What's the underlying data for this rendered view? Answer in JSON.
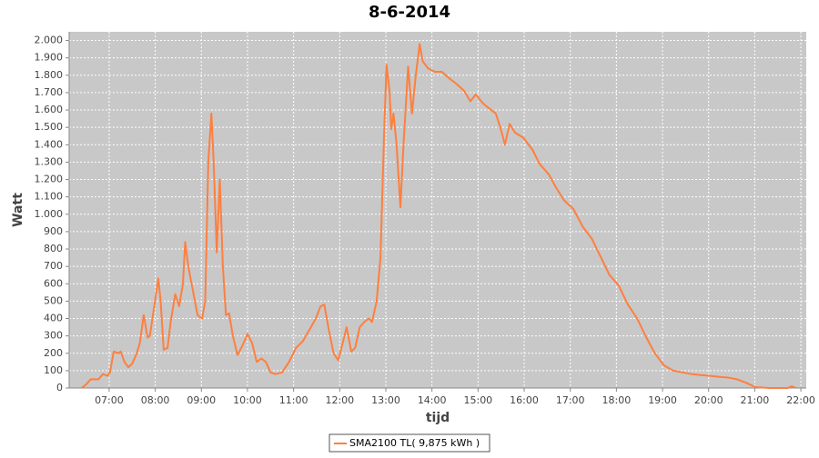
{
  "chart_data": {
    "type": "line",
    "title": "8-6-2014",
    "y_label": "Watt",
    "x_label": "tijd",
    "xlim": [
      "06:08",
      "22:07"
    ],
    "ylim": [
      0,
      2050
    ],
    "xticks": [
      "07:00",
      "08:00",
      "09:00",
      "10:00",
      "11:00",
      "12:00",
      "13:00",
      "14:00",
      "15:00",
      "16:00",
      "17:00",
      "18:00",
      "19:00",
      "20:00",
      "21:00",
      "22:00"
    ],
    "yticks": [
      0,
      100,
      200,
      300,
      400,
      500,
      600,
      700,
      800,
      900,
      {
        "value": 1000,
        "label": "1.000"
      },
      {
        "value": 1100,
        "label": "1.100"
      },
      {
        "value": 1200,
        "label": "1.200"
      },
      {
        "value": 1300,
        "label": "1.300"
      },
      {
        "value": 1400,
        "label": "1.400"
      },
      {
        "value": 1500,
        "label": "1.500"
      },
      {
        "value": 1600,
        "label": "1.600"
      },
      {
        "value": 1700,
        "label": "1.700"
      },
      {
        "value": 1800,
        "label": "1.800"
      },
      {
        "value": 1900,
        "label": "1.900"
      },
      {
        "value": 2000,
        "label": "2.000"
      }
    ],
    "grid": true,
    "legend": "bottom",
    "x": [
      "06:24",
      "06:30",
      "06:36",
      "06:46",
      "06:52",
      "06:58",
      "07:01",
      "07:06",
      "07:12",
      "07:15",
      "07:20",
      "07:25",
      "07:30",
      "07:36",
      "07:40",
      "07:45",
      "07:50",
      "07:53",
      "07:58",
      "08:04",
      "08:07",
      "08:11",
      "08:16",
      "08:20",
      "08:26",
      "08:31",
      "08:36",
      "08:39",
      "08:43",
      "08:49",
      "08:55",
      "09:01",
      "09:05",
      "09:09",
      "09:13",
      "09:16",
      "09:20",
      "09:24",
      "09:28",
      "09:32",
      "09:36",
      "09:41",
      "09:47",
      "09:53",
      "10:00",
      "10:06",
      "10:12",
      "10:18",
      "10:24",
      "10:30",
      "10:36",
      "10:45",
      "10:54",
      "11:03",
      "11:12",
      "11:20",
      "11:29",
      "11:35",
      "11:40",
      "11:46",
      "11:52",
      "11:58",
      "12:04",
      "12:09",
      "12:15",
      "12:20",
      "12:26",
      "12:32",
      "12:38",
      "12:42",
      "12:48",
      "12:53",
      "12:58",
      "13:01",
      "13:05",
      "13:07",
      "13:10",
      "13:14",
      "13:19",
      "13:23",
      "13:29",
      "13:34",
      "13:39",
      "13:44",
      "13:48",
      "13:55",
      "14:04",
      "14:13",
      "14:23",
      "14:32",
      "14:42",
      "14:50",
      "14:57",
      "15:06",
      "15:14",
      "15:23",
      "15:29",
      "15:35",
      "15:41",
      "15:48",
      "15:59",
      "16:11",
      "16:20",
      "16:32",
      "16:42",
      "16:52",
      "17:04",
      "17:16",
      "17:28",
      "17:39",
      "17:51",
      "18:03",
      "18:15",
      "18:27",
      "18:39",
      "18:50",
      "19:02",
      "19:14",
      "19:26",
      "19:38",
      "19:50",
      "20:02",
      "20:13",
      "20:25",
      "20:37",
      "20:49",
      "21:01",
      "21:19",
      "21:43",
      "21:48",
      "21:54"
    ],
    "series": [
      {
        "name": "SMA2100 TL( 9,875 kWh )",
        "color": "#ff7f3f",
        "values": [
          0,
          20,
          50,
          50,
          80,
          70,
          90,
          210,
          200,
          210,
          150,
          120,
          140,
          200,
          260,
          420,
          290,
          300,
          450,
          630,
          500,
          220,
          230,
          380,
          540,
          470,
          600,
          840,
          700,
          560,
          420,
          400,
          500,
          1300,
          1580,
          1300,
          780,
          1200,
          700,
          420,
          430,
          300,
          190,
          240,
          310,
          260,
          150,
          170,
          150,
          90,
          80,
          90,
          150,
          230,
          270,
          330,
          400,
          470,
          480,
          330,
          200,
          160,
          260,
          350,
          210,
          230,
          350,
          380,
          400,
          380,
          500,
          750,
          1500,
          1860,
          1700,
          1490,
          1580,
          1400,
          1040,
          1400,
          1850,
          1580,
          1800,
          1980,
          1880,
          1840,
          1820,
          1820,
          1780,
          1750,
          1710,
          1650,
          1690,
          1640,
          1610,
          1580,
          1500,
          1400,
          1520,
          1470,
          1440,
          1370,
          1290,
          1230,
          1150,
          1080,
          1030,
          930,
          860,
          760,
          650,
          590,
          480,
          400,
          290,
          200,
          130,
          100,
          90,
          80,
          75,
          70,
          65,
          60,
          50,
          30,
          5,
          0,
          0,
          10,
          0
        ]
      }
    ]
  }
}
